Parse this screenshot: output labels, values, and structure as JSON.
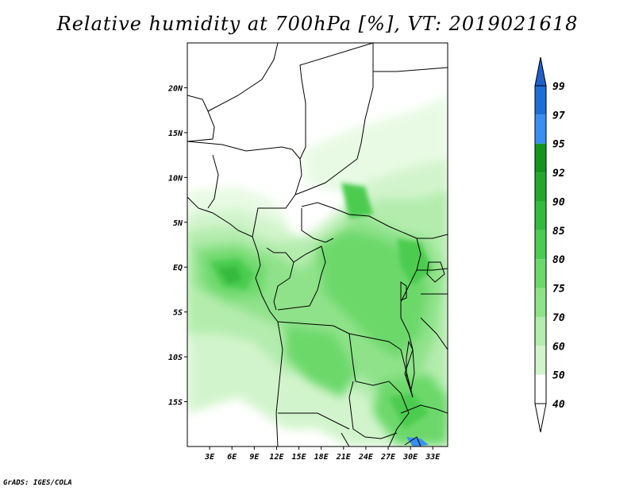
{
  "title": "Relative humidity at 700hPa [%], VT: 2019021618",
  "credit": "GrADS: IGES/COLA",
  "map": {
    "lon_range": [
      0,
      35
    ],
    "lat_range": [
      -20,
      25
    ],
    "lat_ticks": [
      {
        "value": 20,
        "label": "20N"
      },
      {
        "value": 15,
        "label": "15N"
      },
      {
        "value": 10,
        "label": "10N"
      },
      {
        "value": 5,
        "label": "5N"
      },
      {
        "value": 0,
        "label": "EQ"
      },
      {
        "value": -5,
        "label": "5S"
      },
      {
        "value": -10,
        "label": "10S"
      },
      {
        "value": -15,
        "label": "15S"
      }
    ],
    "lon_ticks": [
      {
        "value": 3,
        "label": "3E"
      },
      {
        "value": 6,
        "label": "6E"
      },
      {
        "value": 9,
        "label": "9E"
      },
      {
        "value": 12,
        "label": "12E"
      },
      {
        "value": 15,
        "label": "15E"
      },
      {
        "value": 18,
        "label": "18E"
      },
      {
        "value": 21,
        "label": "21E"
      },
      {
        "value": 24,
        "label": "24E"
      },
      {
        "value": 27,
        "label": "27E"
      },
      {
        "value": 30,
        "label": "30E"
      },
      {
        "value": 33,
        "label": "33E"
      }
    ]
  },
  "colorbar": {
    "levels": [
      {
        "label": "99",
        "color": "#1e6ed8"
      },
      {
        "label": "97",
        "color": "#3a8ef0"
      },
      {
        "label": "95",
        "color": "#12961e"
      },
      {
        "label": "92",
        "color": "#23a82d"
      },
      {
        "label": "90",
        "color": "#34ba3e"
      },
      {
        "label": "85",
        "color": "#4ccc50"
      },
      {
        "label": "80",
        "color": "#6cd86a"
      },
      {
        "label": "75",
        "color": "#8fe28a"
      },
      {
        "label": "70",
        "color": "#b4ecae"
      },
      {
        "label": "60",
        "color": "#d2f4cc"
      },
      {
        "label": "50",
        "color": "#e8fae4"
      },
      {
        "label": "40",
        "color": "#ffffff"
      }
    ],
    "top_arrow_color": "#1f5fc8",
    "bottom_arrow_color": "#ffffff"
  },
  "colors": {
    "land_border": "#000000",
    "frame": "#000000",
    "rh_40_50": "#e8fae4",
    "rh_50_60": "#d2f4cc",
    "rh_60_70": "#b4ecae",
    "rh_70_75": "#8fe28a",
    "rh_75_80": "#6cd86a",
    "rh_80_85": "#4ccc50",
    "rh_85_90": "#34ba3e",
    "rh_97_99": "#3a8ef0"
  }
}
